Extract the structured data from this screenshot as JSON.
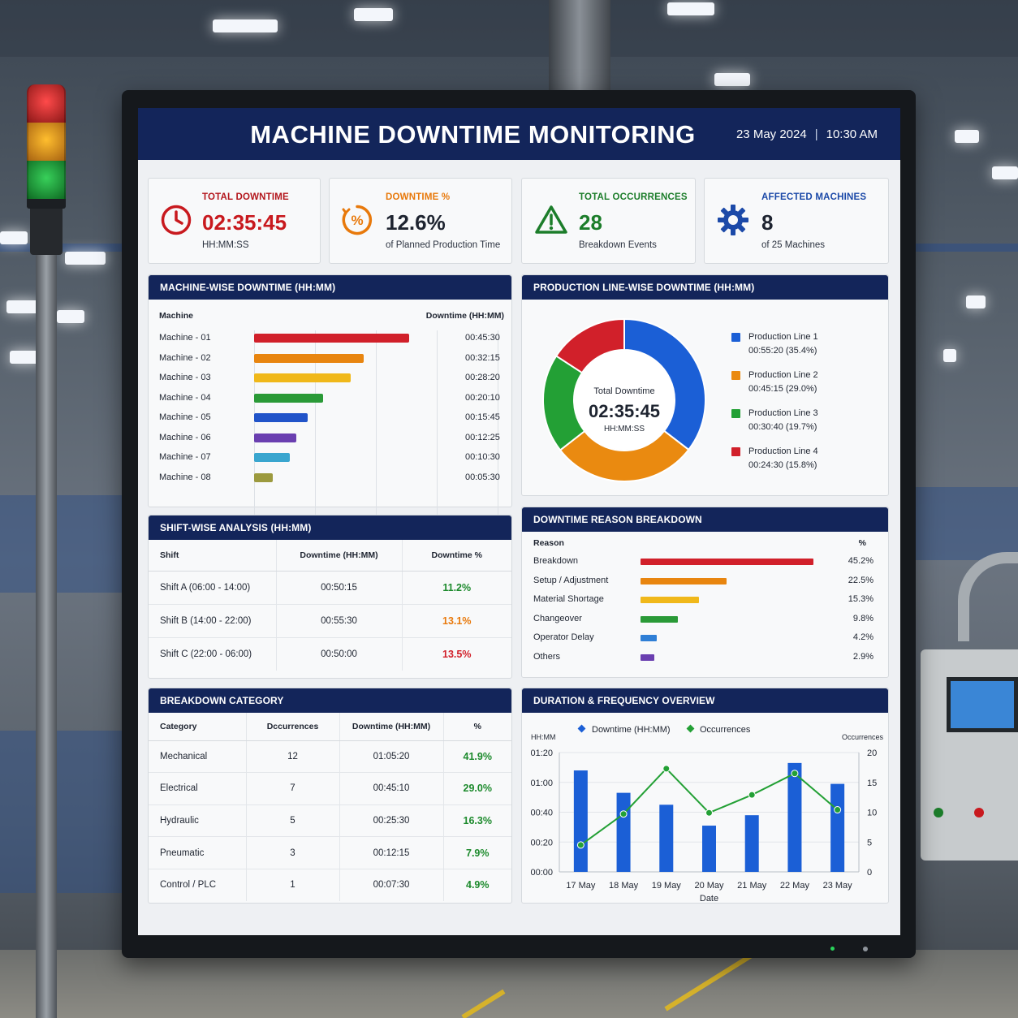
{
  "header": {
    "title": "MACHINE DOWNTIME MONITORING",
    "date": "23 May 2024",
    "time": "10:30 AM",
    "separator": "|"
  },
  "kpis": [
    {
      "label": "TOTAL DOWNTIME",
      "value": "02:35:45",
      "sub": "HH:MM:SS",
      "icon": "clock-icon",
      "color": "#c8191e"
    },
    {
      "label": "DOWNTIME %",
      "value": "12.6%",
      "sub": "of Planned Production Time",
      "icon": "percent-icon",
      "color": "#e8790b"
    },
    {
      "label": "TOTAL OCCURRENCES",
      "value": "28",
      "sub": "Breakdown Events",
      "icon": "warning-icon",
      "color": "#1c7d2a"
    },
    {
      "label": "AFFECTED MACHINES",
      "value": "8",
      "sub": "of 25 Machines",
      "icon": "gear-icon",
      "color": "#1b49a8"
    }
  ],
  "machine_wise": {
    "title": "MACHINE-WISE DOWNTIME (HH:MM)",
    "col_machine": "Machine",
    "col_downtime": "Downtime (HH:MM)",
    "axis_ticks": [
      "00:00",
      "00:15",
      "00:30",
      "00:45",
      "01:00"
    ]
  },
  "production_line": {
    "title": "PRODUCTION LINE-WISE DOWNTIME (HH:MM)",
    "center_label": "Total Downtime",
    "center_value": "02:35:45",
    "center_unit": "HH:MM:SS"
  },
  "shift": {
    "title": "SHIFT-WISE ANALYSIS (HH:MM)",
    "headers": [
      "Shift",
      "Downtime (HH:MM)",
      "Downtime %"
    ],
    "rows": [
      {
        "shift": "Shift A (06:00 - 14:00)",
        "downtime": "00:50:15",
        "pct": "11.2%",
        "color": "#1c8a2c"
      },
      {
        "shift": "Shift B (14:00 - 22:00)",
        "downtime": "00:55:30",
        "pct": "13.1%",
        "color": "#e8790b"
      },
      {
        "shift": "Shift C (22:00 - 06:00)",
        "downtime": "00:50:00",
        "pct": "13.5%",
        "color": "#d1202a"
      }
    ]
  },
  "reasons": {
    "title": "DOWNTIME REASON BREAKDOWN",
    "col_reason": "Reason",
    "col_pct": "%"
  },
  "breakdown": {
    "title": "BREAKDOWN CATEGORY",
    "headers": [
      "Category",
      "Dccurrences",
      "Downtime (HH:MM)",
      "%"
    ],
    "rows": [
      {
        "category": "Mechanical",
        "occ": "12",
        "downtime": "01:05:20",
        "pct": "41.9%"
      },
      {
        "category": "Electrical",
        "occ": "7",
        "downtime": "00:45:10",
        "pct": "29.0%"
      },
      {
        "category": "Hydraulic",
        "occ": "5",
        "downtime": "00:25:30",
        "pct": "16.3%"
      },
      {
        "category": "Pneumatic",
        "occ": "3",
        "downtime": "00:12:15",
        "pct": "7.9%"
      },
      {
        "category": "Control / PLC",
        "occ": "1",
        "downtime": "00:07:30",
        "pct": "4.9%"
      }
    ],
    "pct_color": "#1c8a2c"
  },
  "duration": {
    "title": "DURATION & FREQUENCY OVERVIEW"
  },
  "chart_data": [
    {
      "type": "bar",
      "orientation": "horizontal",
      "title": "MACHINE-WISE DOWNTIME (HH:MM)",
      "categories": [
        "Machine - 01",
        "Machine - 02",
        "Machine - 03",
        "Machine - 04",
        "Machine - 05",
        "Machine - 06",
        "Machine - 07",
        "Machine - 08"
      ],
      "labels": [
        "00:45:30",
        "00:32:15",
        "00:28:20",
        "00:20:10",
        "00:15:45",
        "00:12:25",
        "00:10:30",
        "00:05:30"
      ],
      "values_minutes": [
        45.5,
        32.25,
        28.33,
        20.17,
        15.75,
        12.42,
        10.5,
        5.5
      ],
      "colors": [
        "#d1202a",
        "#e8850f",
        "#f0b81a",
        "#2a9a37",
        "#2154c9",
        "#6a3fb0",
        "#3aa6cf",
        "#9c9a3e"
      ],
      "xlim_minutes": [
        0,
        60
      ],
      "xticks": [
        "00:00",
        "00:15",
        "00:30",
        "00:45",
        "01:00"
      ],
      "grid": true
    },
    {
      "type": "pie",
      "donut": true,
      "title": "PRODUCTION LINE-WISE DOWNTIME (HH:MM)",
      "slices": [
        {
          "label": "Production Line 1",
          "value_text": "00:55:20 (35.4%)",
          "pct": 35.4,
          "color": "#1b5fd6"
        },
        {
          "label": "Production Line 2",
          "value_text": "00:45:15 (29.0%)",
          "pct": 29.0,
          "color": "#ea8a10"
        },
        {
          "label": "Production Line 3",
          "value_text": "00:30:40 (19.7%)",
          "pct": 19.7,
          "color": "#23a035"
        },
        {
          "label": "Production Line 4",
          "value_text": "00:24:30 (15.8%)",
          "pct": 15.8,
          "color": "#d1202a"
        }
      ],
      "legend": "right"
    },
    {
      "type": "bar",
      "orientation": "horizontal",
      "title": "DOWNTIME REASON BREAKDOWN",
      "categories": [
        "Breakdown",
        "Setup / Adjustment",
        "Material Shortage",
        "Changeover",
        "Operator Delay",
        "Others"
      ],
      "labels": [
        "45.2%",
        "22.5%",
        "15.3%",
        "9.8%",
        "4.2%",
        "2.9%"
      ],
      "values": [
        45.2,
        22.5,
        15.3,
        9.8,
        4.2,
        2.9
      ],
      "colors": [
        "#d1202a",
        "#e8850f",
        "#f0b81a",
        "#2a9a37",
        "#2f7fd6",
        "#6a3fb0"
      ],
      "xlim": [
        0,
        45.2
      ]
    },
    {
      "type": "bar",
      "title": "DURATION & FREQUENCY OVERVIEW",
      "x": [
        "17 May",
        "18 May",
        "19 May",
        "20 May",
        "21 May",
        "22 May",
        "23 May"
      ],
      "xlabel": "Date",
      "ylabel": "HH:MM",
      "y2label": "Occurrences",
      "yticks": [
        "00:00",
        "00:20",
        "00:40",
        "01:00",
        "01:20"
      ],
      "ylim_minutes": [
        0,
        80
      ],
      "y2ticks": [
        "0",
        "5",
        "10",
        "15",
        "20"
      ],
      "y2lim": [
        0,
        20
      ],
      "legend": "top",
      "series": [
        {
          "name": "Downtime (HH:MM)",
          "type": "bar",
          "axis": "left",
          "values_minutes": [
            68,
            53,
            45,
            31,
            38,
            73,
            59
          ],
          "color": "#1b5fd6"
        },
        {
          "name": "Occurrences",
          "type": "line",
          "axis": "right",
          "values": [
            4.5,
            9.7,
            17.3,
            9.9,
            12.9,
            16.5,
            10.4
          ],
          "color": "#23a035"
        }
      ]
    }
  ]
}
